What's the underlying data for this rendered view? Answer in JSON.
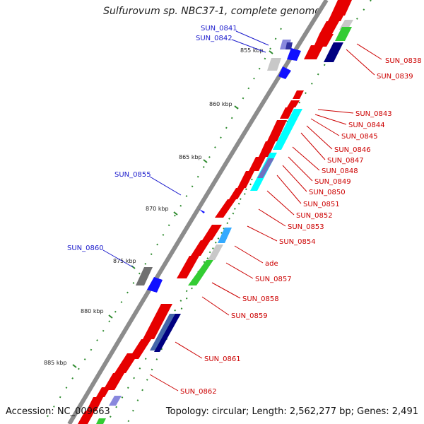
{
  "title": "Sulfurovum sp. NBC37-1, complete genome",
  "footer": {
    "accession": "Accession: NC_009663",
    "topology": "Topology: circular; Length: 2,562,277 bp; Genes: 2,491"
  },
  "colors": {
    "backbone": "#8c8c8c",
    "forward_label": "#cc0000",
    "reverse_label": "#1a1acc",
    "tick": "#2e8b2e"
  },
  "kbp_ticks": [
    "855 kbp",
    "860 kbp",
    "865 kbp",
    "870 kbp",
    "875 kbp",
    "880 kbp",
    "885 kbp"
  ],
  "gene_labels": {
    "right": [
      "SUN_0838",
      "SUN_0839",
      "SUN_0843",
      "SUN_0844",
      "SUN_0845",
      "SUN_0846",
      "SUN_0847",
      "SUN_0848",
      "SUN_0849",
      "SUN_0850",
      "SUN_0851",
      "SUN_0852",
      "SUN_0853",
      "SUN_0854",
      "ade",
      "SUN_0857",
      "SUN_0858",
      "SUN_0859",
      "SUN_0861",
      "SUN_0862"
    ],
    "left": [
      "SUN_0841",
      "SUN_0842",
      "SUN_0855",
      "SUN_0860"
    ]
  }
}
